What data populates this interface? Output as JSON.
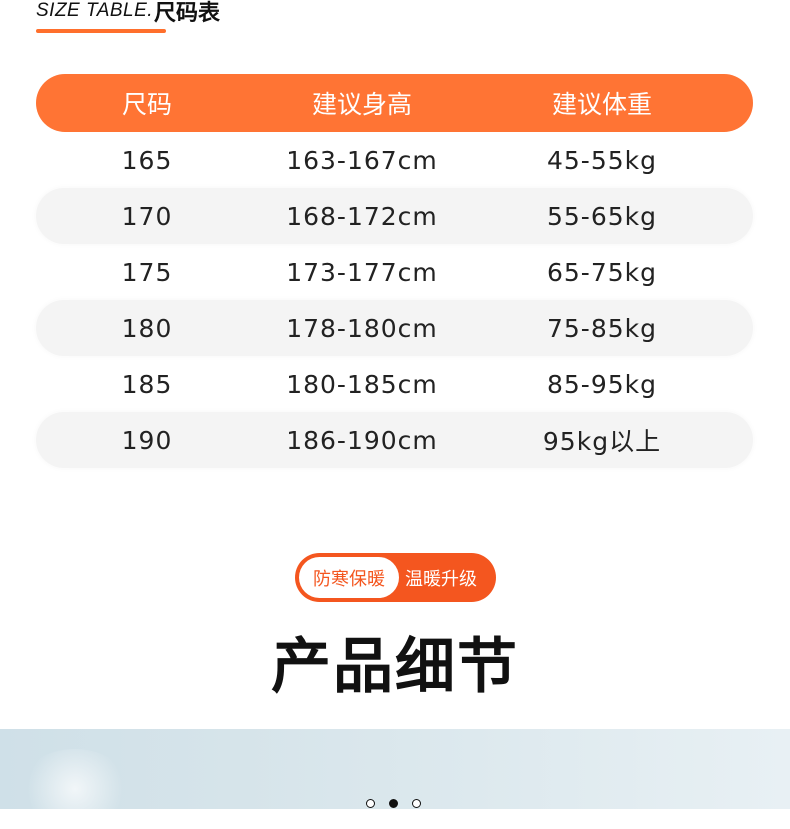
{
  "header": {
    "title_en": "SIZE TABLE.",
    "title_cn": "尺码表",
    "accent": "#ff7434"
  },
  "table": {
    "columns": [
      "尺码",
      "建议身高",
      "建议体重"
    ],
    "rows": [
      [
        "165",
        "163-167cm",
        "45-55kg"
      ],
      [
        "170",
        "168-172cm",
        "55-65kg"
      ],
      [
        "175",
        "173-177cm",
        "65-75kg"
      ],
      [
        "180",
        "178-180cm",
        "75-85kg"
      ],
      [
        "185",
        "180-185cm",
        "85-95kg"
      ],
      [
        "190",
        "186-190cm",
        "95kg以上"
      ]
    ]
  },
  "badge": {
    "left": "防寒保暖",
    "right": "温暖升级"
  },
  "section_title": "产品细节",
  "carousel": {
    "count": 3,
    "active": 2
  }
}
